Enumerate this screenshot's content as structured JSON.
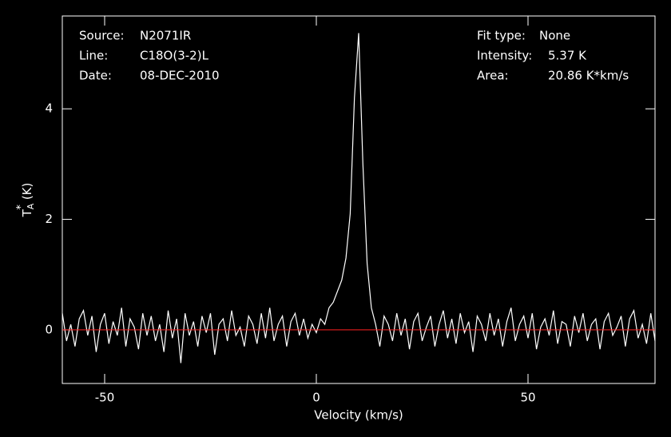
{
  "chart_data": {
    "type": "line",
    "x_label": "Velocity (km/s)",
    "y_label": {
      "main": "T",
      "sub": "A",
      "sup": "*",
      "unit": "(K)"
    },
    "annotations_left": [
      {
        "label": "Source:",
        "value": "N2071IR"
      },
      {
        "label": "Line:",
        "value": "C18O(3-2)L"
      },
      {
        "label": "Date:",
        "value": "08-DEC-2010"
      }
    ],
    "annotations_right": [
      {
        "label": "Fit type:",
        "value": "None"
      },
      {
        "label": "Intensity:",
        "value": "5.37 K"
      },
      {
        "label": "Area:",
        "value": "20.86 K*km/s"
      }
    ],
    "xlim": [
      -60,
      80
    ],
    "ylim": [
      -0.97,
      5.68
    ],
    "xticks": [
      -50,
      0,
      50
    ],
    "yticks": [
      0,
      2,
      4
    ],
    "baseline": 0,
    "baseline_color": "#ff2020",
    "series": [
      {
        "color": "#ffffff",
        "x": [
          -60,
          -59,
          -58,
          -57,
          -56,
          -55,
          -54,
          -53,
          -52,
          -51,
          -50,
          -49,
          -48,
          -47,
          -46,
          -45,
          -44,
          -43,
          -42,
          -41,
          -40,
          -39,
          -38,
          -37,
          -36,
          -35,
          -34,
          -33,
          -32,
          -31,
          -30,
          -29,
          -28,
          -27,
          -26,
          -25,
          -24,
          -23,
          -22,
          -21,
          -20,
          -19,
          -18,
          -17,
          -16,
          -15,
          -14,
          -13,
          -12,
          -11,
          -10,
          -9,
          -8,
          -7,
          -6,
          -5,
          -4,
          -3,
          -2,
          -1,
          0,
          1,
          2,
          3,
          4,
          5,
          6,
          7,
          8,
          9,
          10,
          11,
          12,
          13,
          14,
          15,
          16,
          17,
          18,
          19,
          20,
          21,
          22,
          23,
          24,
          25,
          26,
          27,
          28,
          29,
          30,
          31,
          32,
          33,
          34,
          35,
          36,
          37,
          38,
          39,
          40,
          41,
          42,
          43,
          44,
          45,
          46,
          47,
          48,
          49,
          50,
          51,
          52,
          53,
          54,
          55,
          56,
          57,
          58,
          59,
          60,
          61,
          62,
          63,
          64,
          65,
          66,
          67,
          68,
          69,
          70,
          71,
          72,
          73,
          74,
          75,
          76,
          77,
          78,
          79,
          80
        ],
        "values": [
          0.3,
          -0.2,
          0.1,
          -0.3,
          0.2,
          0.35,
          -0.1,
          0.25,
          -0.4,
          0.1,
          0.3,
          -0.25,
          0.15,
          -0.1,
          0.4,
          -0.3,
          0.2,
          0.05,
          -0.35,
          0.3,
          -0.1,
          0.25,
          -0.2,
          0.1,
          -0.4,
          0.35,
          -0.15,
          0.2,
          -0.6,
          0.3,
          -0.1,
          0.15,
          -0.3,
          0.25,
          -0.05,
          0.3,
          -0.45,
          0.1,
          0.2,
          -0.2,
          0.35,
          -0.1,
          0.05,
          -0.3,
          0.25,
          0.1,
          -0.25,
          0.3,
          -0.15,
          0.4,
          -0.2,
          0.1,
          0.25,
          -0.3,
          0.15,
          0.3,
          -0.1,
          0.2,
          -0.15,
          0.1,
          -0.05,
          0.2,
          0.1,
          0.4,
          0.5,
          0.7,
          0.9,
          1.3,
          2.1,
          4.2,
          5.37,
          3.0,
          1.2,
          0.4,
          0.1,
          -0.3,
          0.25,
          0.1,
          -0.2,
          0.3,
          -0.1,
          0.2,
          -0.35,
          0.15,
          0.3,
          -0.2,
          0.05,
          0.25,
          -0.3,
          0.1,
          0.35,
          -0.15,
          0.2,
          -0.25,
          0.3,
          -0.05,
          0.15,
          -0.4,
          0.25,
          0.1,
          -0.2,
          0.3,
          -0.1,
          0.2,
          -0.3,
          0.15,
          0.4,
          -0.2,
          0.1,
          0.25,
          -0.15,
          0.3,
          -0.35,
          0.05,
          0.2,
          -0.1,
          0.35,
          -0.25,
          0.15,
          0.1,
          -0.3,
          0.25,
          -0.05,
          0.3,
          -0.2,
          0.1,
          0.2,
          -0.35,
          0.15,
          0.3,
          -0.1,
          0.05,
          0.25,
          -0.3,
          0.2,
          0.35,
          -0.15,
          0.1,
          -0.25,
          0.3,
          -0.2
        ]
      }
    ]
  }
}
